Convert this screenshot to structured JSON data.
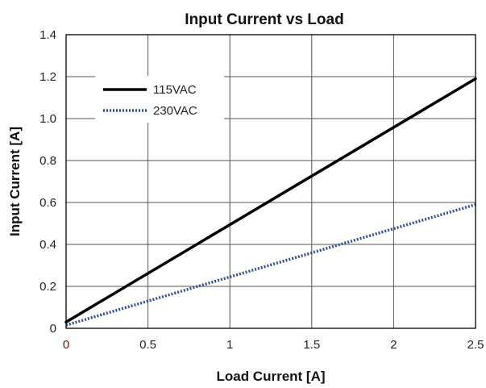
{
  "chart_data": {
    "type": "line",
    "title": "Input Current vs Load",
    "xlabel": "Load Current [A]",
    "ylabel": "Input Current [A]",
    "xlim": [
      0,
      2.5
    ],
    "ylim": [
      0,
      1.4
    ],
    "x_ticks": [
      "0",
      "0.5",
      "1",
      "1.5",
      "2",
      "2.5"
    ],
    "y_ticks": [
      "0",
      "0.2",
      "0.4",
      "0.6",
      "0.8",
      "1.0",
      "1.2",
      "1.4"
    ],
    "grid": true,
    "legend_position": "top-left",
    "series": [
      {
        "name": "115VAC",
        "x": [
          0,
          2.5
        ],
        "y": [
          0.03,
          1.19
        ],
        "color": "#000000",
        "style": "solid"
      },
      {
        "name": "230VAC",
        "x": [
          0,
          2.5
        ],
        "y": [
          0.015,
          0.59
        ],
        "color": "#2e4f8a",
        "style": "dotted"
      }
    ]
  }
}
